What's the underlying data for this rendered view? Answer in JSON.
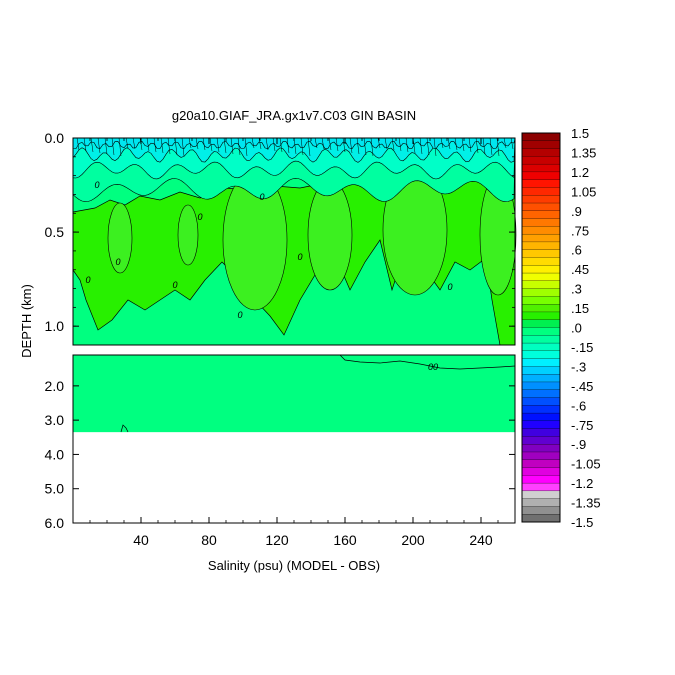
{
  "chart_data": {
    "type": "heatmap",
    "title": "g20a10.GIAF_JRA.gx1v7.C03 GIN BASIN",
    "xlabel": "Salinity (psu) (MODEL - OBS)",
    "ylabel": "DEPTH (km)",
    "x_ticks": [
      "40",
      "80",
      "120",
      "160",
      "200",
      "240"
    ],
    "x_range": [
      0,
      260
    ],
    "upper_panel": {
      "y_range": [
        0.0,
        1.1
      ],
      "y_ticks": [
        "0.0",
        "0.5",
        "1.0"
      ]
    },
    "lower_panel": {
      "y_range": [
        1.1,
        6.0
      ],
      "y_ticks": [
        "2.0",
        "3.0",
        "4.0",
        "5.0",
        "6.0"
      ],
      "data_bottom_depth": 3.35
    },
    "contour_labels": [
      "0",
      "0",
      "0",
      "0",
      "0",
      "0",
      "0",
      "0",
      "0",
      "00"
    ],
    "colorbar": {
      "labels": [
        "1.5",
        "1.35",
        "1.2",
        "1.05",
        ".9",
        ".75",
        ".6",
        ".45",
        ".3",
        ".15",
        ".0",
        "-.15",
        "-.3",
        "-.45",
        "-.6",
        "-.75",
        "-.9",
        "-1.05",
        "-1.2",
        "-1.35",
        "-1.5"
      ],
      "colors": [
        "#8c0000",
        "#a00000",
        "#b40000",
        "#c80000",
        "#dc0000",
        "#f00000",
        "#ff1400",
        "#ff2800",
        "#ff3c00",
        "#ff5000",
        "#ff6400",
        "#ff7800",
        "#ff8c00",
        "#ffa000",
        "#ffb400",
        "#ffc800",
        "#ffdc00",
        "#fff000",
        "#f0ff00",
        "#c8ff00",
        "#a0ff00",
        "#78ff00",
        "#50f000",
        "#28f000",
        "#00f050",
        "#00ff80",
        "#00ffa0",
        "#00ffc0",
        "#00ffdc",
        "#00f0ff",
        "#00d0ff",
        "#00b0ff",
        "#0090ff",
        "#0070ff",
        "#0050ff",
        "#0030ff",
        "#0010ff",
        "#2000ff",
        "#4000e0",
        "#6000d0",
        "#8000c0",
        "#a000c0",
        "#c000c0",
        "#e000e0",
        "#ff00ff",
        "#ff40ff",
        "#d0d0d0",
        "#b0b0b0",
        "#909090",
        "#707070"
      ]
    },
    "fill_colors": {
      "near_zero": "#00ff80",
      "slightly_negative": "#00ffa0",
      "negative": "#00ffc8",
      "more_negative": "#00f0e8",
      "slightly_positive": "#28f000",
      "positive": "#3cf020"
    }
  }
}
